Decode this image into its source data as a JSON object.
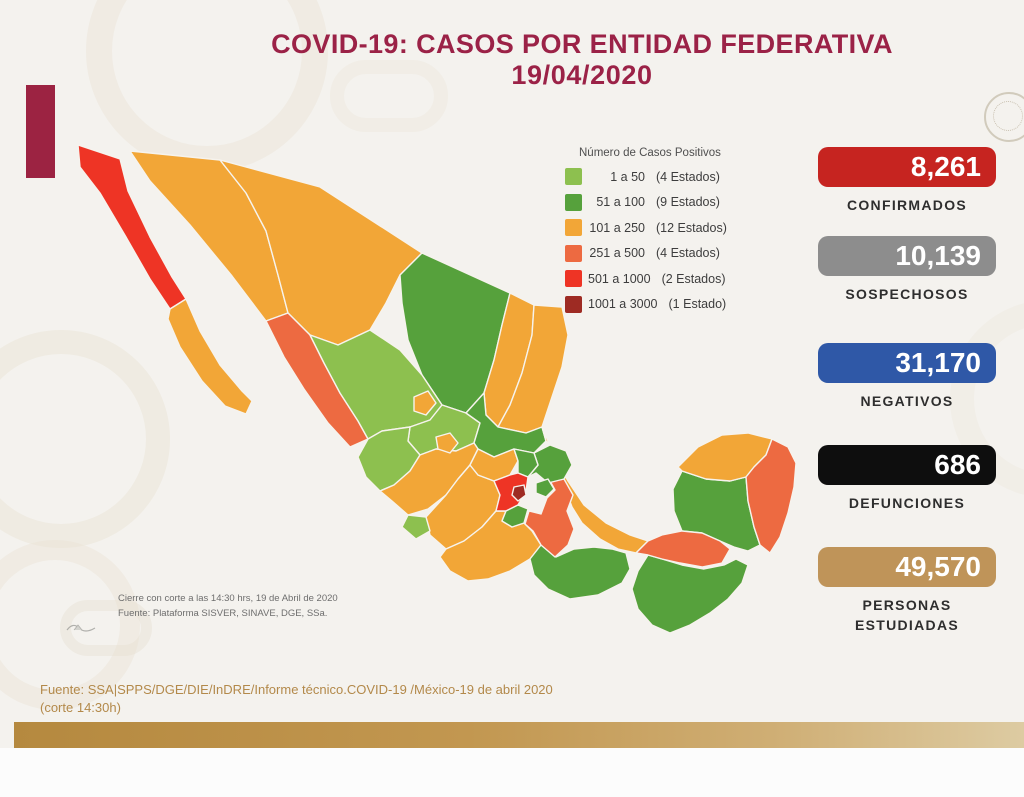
{
  "title": {
    "line1": "COVID-19: CASOS POR ENTIDAD FEDERATIVA",
    "line2": "19/04/2020"
  },
  "legend": {
    "title": "Número de Casos Positivos",
    "items": [
      {
        "range": "1 a 50",
        "count": "(4 Estados)",
        "color": "#8dc04f"
      },
      {
        "range": "51 a 100",
        "count": "(9 Estados)",
        "color": "#56a13c"
      },
      {
        "range": "101 a 250",
        "count": "(12 Estados)",
        "color": "#f2a637"
      },
      {
        "range": "251 a 500",
        "count": "(4 Estados)",
        "color": "#ed6a41"
      },
      {
        "range": "501 a 1000",
        "count": "(2 Estados)",
        "color": "#ee3425"
      },
      {
        "range": "1001 a 3000",
        "count": "(1 Estado)",
        "color": "#9e2b23"
      }
    ]
  },
  "stats": [
    {
      "label": "CONFIRMADOS",
      "value": "8,261",
      "color": "#c62420"
    },
    {
      "label": "SOSPECHOSOS",
      "value": "10,139",
      "color": "#8d8d8d"
    },
    {
      "label": "NEGATIVOS",
      "value": "31,170",
      "color": "#2f58a7"
    },
    {
      "label": "DEFUNCIONES",
      "value": "686",
      "color": "#0e0e0e"
    },
    {
      "label": "PERSONAS ESTUDIADAS",
      "value": "49,570",
      "color": "#bf9459"
    }
  ],
  "map_caption": {
    "line1": "Cierre con corte a las 14:30 hrs, 19 de Abril de 2020",
    "line2": "Fuente: Plataforma SISVER, SINAVE, DGE, SSa."
  },
  "footer": {
    "source": "Fuente: SSA|SPPS/DGE/DIE/InDRE/Informe técnico.COVID-19 /México-19 de abril 2020 (corte 14:30h)"
  },
  "chart_data": {
    "type": "choropleth",
    "title": "COVID-19: Casos por entidad federativa",
    "date": "19/04/2020",
    "legend_title": "Número de Casos Positivos",
    "legend_position": "right of map",
    "buckets": [
      {
        "range": "1 a 50",
        "states": 4,
        "color": "#8dc04f"
      },
      {
        "range": "51 a 100",
        "states": 9,
        "color": "#56a13c"
      },
      {
        "range": "101 a 250",
        "states": 12,
        "color": "#f2a637"
      },
      {
        "range": "251 a 500",
        "states": 4,
        "color": "#ed6a41"
      },
      {
        "range": "501 a 1000",
        "states": 2,
        "color": "#ee3425"
      },
      {
        "range": "1001 a 3000",
        "states": 1,
        "color": "#9e2b23"
      }
    ],
    "states": [
      {
        "id": "sonora",
        "name": "Sonora",
        "bucket": 2
      },
      {
        "id": "chihuahua",
        "name": "Chihuahua",
        "bucket": 2
      },
      {
        "id": "coahuila",
        "name": "Coahuila",
        "bucket": 1
      },
      {
        "id": "nuevo-leon",
        "name": "Nuevo León",
        "bucket": 2
      },
      {
        "id": "tamaulipas",
        "name": "Tamaulipas",
        "bucket": 2
      },
      {
        "id": "baja-california",
        "name": "Baja California",
        "bucket": 4
      },
      {
        "id": "baja-california-sur",
        "name": "Baja California Sur",
        "bucket": 2
      },
      {
        "id": "sinaloa",
        "name": "Sinaloa",
        "bucket": 3
      },
      {
        "id": "durango",
        "name": "Durango",
        "bucket": 0
      },
      {
        "id": "zacatecas",
        "name": "Zacatecas",
        "bucket": 0
      },
      {
        "id": "san-luis-potosi",
        "name": "San Luis Potosí",
        "bucket": 1
      },
      {
        "id": "nayarit",
        "name": "Nayarit",
        "bucket": 0
      },
      {
        "id": "jalisco",
        "name": "Jalisco",
        "bucket": 2
      },
      {
        "id": "veracruz",
        "name": "Veracruz",
        "bucket": 2
      },
      {
        "id": "michoacan",
        "name": "Michoacán",
        "bucket": 2
      },
      {
        "id": "guerrero",
        "name": "Guerrero",
        "bucket": 2
      },
      {
        "id": "oaxaca",
        "name": "Oaxaca",
        "bucket": 1
      },
      {
        "id": "chiapas",
        "name": "Chiapas",
        "bucket": 1
      },
      {
        "id": "campeche",
        "name": "Campeche",
        "bucket": 1
      },
      {
        "id": "yucatan",
        "name": "Yucatán",
        "bucket": 2
      },
      {
        "id": "quintana-roo",
        "name": "Quintana Roo",
        "bucket": 3
      },
      {
        "id": "tabasco",
        "name": "Tabasco",
        "bucket": 3
      },
      {
        "id": "puebla",
        "name": "Puebla",
        "bucket": 3
      },
      {
        "id": "guanajuato",
        "name": "Guanajuato",
        "bucket": 2
      },
      {
        "id": "hidalgo",
        "name": "Hidalgo",
        "bucket": 1
      },
      {
        "id": "queretaro",
        "name": "Querétaro",
        "bucket": 1
      },
      {
        "id": "mexico",
        "name": "Estado de México",
        "bucket": 4
      },
      {
        "id": "aguascalientes",
        "name": "Aguascalientes",
        "bucket": 2
      },
      {
        "id": "colima",
        "name": "Colima",
        "bucket": 0
      },
      {
        "id": "morelos",
        "name": "Morelos",
        "bucket": 1
      },
      {
        "id": "tlaxcala",
        "name": "Tlaxcala",
        "bucket": 1
      },
      {
        "id": "ciudad-de-mexico",
        "name": "Ciudad de México",
        "bucket": 5
      }
    ],
    "totals": {
      "confirmados": 8261,
      "sospechosos": 10139,
      "negativos": 31170,
      "defunciones": 686,
      "personas_estudiadas": 49570
    }
  }
}
